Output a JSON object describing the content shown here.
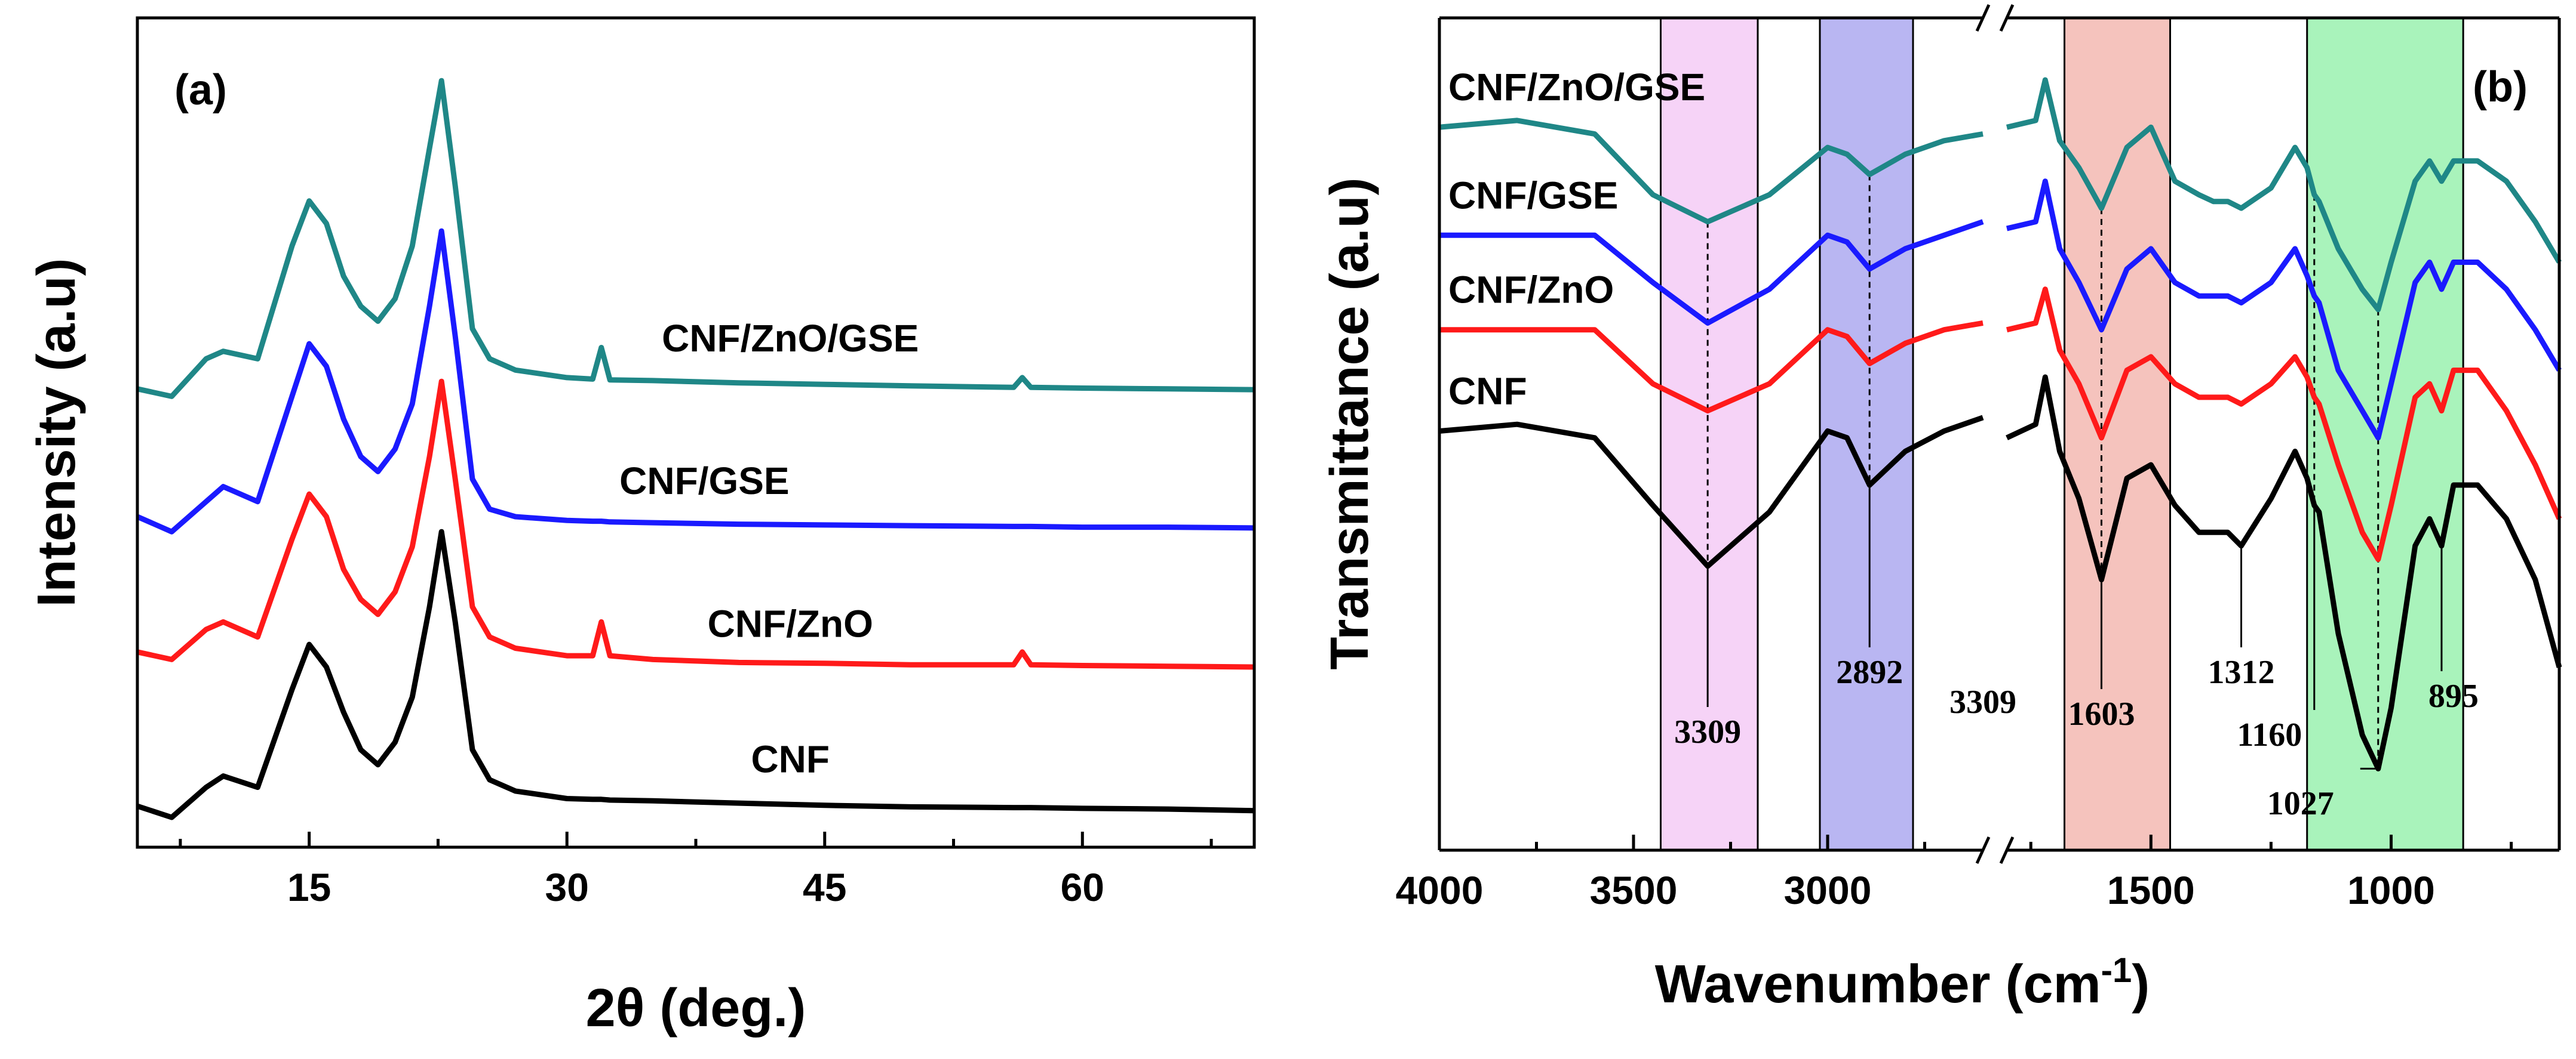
{
  "colors": {
    "CNF": "#000000",
    "CNF/ZnO": "#ff1a1a",
    "CNF/GSE": "#1a1aff",
    "CNF/ZnO/GSE": "#1f8787",
    "band_pink": "#f6d3f7",
    "band_blue": "#b9b6f2",
    "band_red": "#f5c3bd",
    "band_green": "#a9f3bb"
  },
  "chart_data": [
    {
      "type": "line",
      "panel_label": "(a)",
      "title": "",
      "xlabel": "2θ (deg.)",
      "ylabel": "Intensity (a.u)",
      "xlim": [
        5,
        70
      ],
      "ylim": [
        0,
        100
      ],
      "xticks": [
        15,
        30,
        45,
        60
      ],
      "xtick_labels": [
        "15",
        "30",
        "45",
        "60"
      ],
      "x": [
        5,
        7,
        9,
        10,
        12,
        14,
        15,
        16,
        17,
        18,
        19,
        20,
        21,
        22,
        22.7,
        23.5,
        24.5,
        25.5,
        27,
        30,
        31.5,
        32,
        32.5,
        35,
        40,
        45,
        50,
        56,
        56.5,
        57,
        60,
        65,
        70
      ],
      "series": [
        {
          "name": "CNF",
          "label": "CNF",
          "values": [
            1.5,
            0,
            4,
            5.5,
            4,
            17,
            23,
            20,
            14,
            9,
            7,
            10,
            16,
            28,
            38,
            26,
            9,
            5,
            3.5,
            2.5,
            2.4,
            2.4,
            2.3,
            2.2,
            1.9,
            1.6,
            1.4,
            1.3,
            1.3,
            1.3,
            1.2,
            1.1,
            0.9
          ]
        },
        {
          "name": "CNF/ZnO",
          "label": "CNF/ZnO",
          "values": [
            22,
            21,
            25,
            26,
            24,
            37,
            43,
            40,
            33,
            29,
            27,
            30,
            36,
            48,
            58,
            45,
            28,
            24,
            22.5,
            21.5,
            21.5,
            26,
            21.5,
            21,
            20.6,
            20.5,
            20.3,
            20.3,
            22,
            20.3,
            20.2,
            20.1,
            20
          ]
        },
        {
          "name": "CNF/GSE",
          "label": "CNF/GSE",
          "values": [
            40,
            38,
            42,
            44,
            42,
            56,
            63,
            60,
            53,
            48,
            46,
            49,
            55,
            68,
            78,
            64,
            45,
            41,
            40,
            39.5,
            39.4,
            39.4,
            39.3,
            39.2,
            39,
            38.9,
            38.8,
            38.7,
            38.7,
            38.7,
            38.6,
            38.6,
            38.5
          ]
        },
        {
          "name": "CNF/ZnO/GSE",
          "label": "CNF/ZnO/GSE",
          "values": [
            57,
            56,
            61,
            62,
            61,
            76,
            82,
            79,
            72,
            68,
            66,
            69,
            76,
            89,
            98,
            84,
            65,
            61,
            59.5,
            58.5,
            58.3,
            62.5,
            58.2,
            58.1,
            57.8,
            57.6,
            57.4,
            57.2,
            58.5,
            57.2,
            57.1,
            57,
            56.9
          ]
        }
      ],
      "series_labels_pos": {
        "CNF": [
          43,
          6
        ],
        "CNF/ZnO": [
          43,
          24
        ],
        "CNF/GSE": [
          38,
          43
        ],
        "CNF/ZnO/GSE": [
          43,
          62
        ]
      }
    },
    {
      "type": "line",
      "panel_label": "(b)",
      "title": "",
      "xlabel": "Wavenumber (cm",
      "xlabel_sup": "-1",
      "xlabel_close": ")",
      "ylabel": "Transmittance (a.u)",
      "xlim": [
        4000,
        650
      ],
      "axis_break": "between 2600 and 1800 cm-1",
      "xticks": [
        4000,
        3500,
        3000,
        1500,
        1000
      ],
      "xtick_labels": [
        "4000",
        "3500",
        "3000",
        "1500",
        "1000"
      ],
      "segments": [
        {
          "x": [
            4000,
            3800,
            3600,
            3450,
            3309,
            3150,
            3000,
            2950,
            2892,
            2800,
            2700,
            2600
          ]
        },
        {
          "x": [
            1800,
            1740,
            1720,
            1690,
            1650,
            1603,
            1550,
            1500,
            1450,
            1400,
            1370,
            1340,
            1312,
            1250,
            1200,
            1175,
            1160,
            1150,
            1110,
            1060,
            1027,
            1000,
            950,
            920,
            895,
            870,
            820,
            760,
            700,
            650
          ]
        }
      ],
      "series": [
        {
          "name": "CNF",
          "label": "CNF",
          "segments": [
            [
              55,
              56,
              54,
              44,
              35,
              43,
              55,
              54,
              47,
              52,
              55,
              57
            ],
            [
              54,
              56,
              63,
              52,
              45,
              33,
              48,
              50,
              44,
              40,
              40,
              40,
              38,
              45,
              52,
              48,
              44,
              43,
              25,
              10,
              5,
              14,
              38,
              42,
              38,
              47,
              47,
              42,
              33,
              20
            ]
          ]
        },
        {
          "name": "CNF/ZnO",
          "label": "CNF/ZnO",
          "segments": [
            [
              70,
              70,
              70,
              62,
              58,
              62,
              70,
              69,
              65,
              68,
              70,
              71
            ],
            [
              70,
              71,
              76,
              67,
              62,
              54,
              64,
              66,
              62,
              60,
              60,
              60,
              59,
              62,
              66,
              63,
              60,
              59,
              50,
              40,
              36,
              44,
              60,
              62,
              58,
              64,
              64,
              58,
              50,
              42
            ]
          ]
        },
        {
          "name": "CNF/GSE",
          "label": "CNF/GSE",
          "segments": [
            [
              84,
              84,
              84,
              77,
              71,
              76,
              84,
              83,
              79,
              82,
              84,
              86
            ],
            [
              85,
              86,
              92,
              82,
              77,
              70,
              79,
              82,
              77,
              75,
              75,
              75,
              74,
              77,
              82,
              78,
              75,
              74,
              64,
              58,
              54,
              62,
              77,
              80,
              76,
              80,
              80,
              76,
              70,
              64
            ]
          ]
        },
        {
          "name": "CNF/ZnO/GSE",
          "label": "CNF/ZnO/GSE",
          "segments": [
            [
              100,
              101,
              99,
              90,
              86,
              90,
              97,
              96,
              93,
              96,
              98,
              99
            ],
            [
              100,
              101,
              107,
              98,
              94,
              88,
              97,
              100,
              92,
              90,
              89,
              89,
              88,
              91,
              97,
              94,
              90,
              89,
              82,
              76,
              73,
              80,
              92,
              95,
              92,
              95,
              95,
              92,
              86,
              80
            ]
          ]
        }
      ],
      "bands": [
        {
          "name": "pink",
          "from": 3430,
          "to": 3180
        },
        {
          "name": "blue",
          "from": 3020,
          "to": 2780
        },
        {
          "name": "red",
          "from": 1680,
          "to": 1460
        },
        {
          "name": "green",
          "from": 1175,
          "to": 850
        }
      ],
      "peak_labels": [
        {
          "text": "3309",
          "x": 3309
        },
        {
          "text": "2892",
          "x": 2892
        },
        {
          "text": "3309",
          "x": 2600,
          "note": "axis-break annotation"
        },
        {
          "text": "1603",
          "x": 1603
        },
        {
          "text": "1312",
          "x": 1312
        },
        {
          "text": "1160",
          "x": 1160
        },
        {
          "text": "1027",
          "x": 1027
        },
        {
          "text": "895",
          "x": 895
        }
      ],
      "series_labels_order": [
        "CNF/ZnO/GSE",
        "CNF/GSE",
        "CNF/ZnO",
        "CNF"
      ]
    }
  ]
}
